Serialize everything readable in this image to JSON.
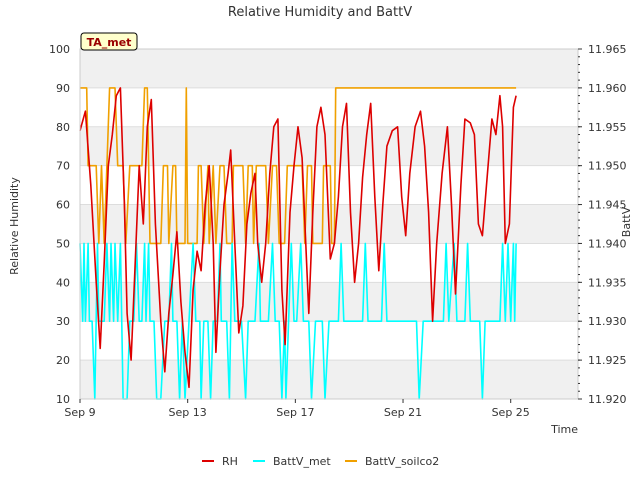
{
  "chart_data": {
    "type": "line",
    "title": "Relative Humidity and BattV",
    "xlabel": "Time",
    "ylabel": "Relative Humidity",
    "y2label": "BattV",
    "annotation": "TA_met",
    "x_tick_labels": [
      "Sep 9",
      "Sep 13",
      "Sep 17",
      "Sep 21",
      "Sep 25"
    ],
    "x_range_days": [
      0,
      18.5
    ],
    "ylim": [
      10,
      100
    ],
    "y_ticks": [
      10,
      20,
      30,
      40,
      50,
      60,
      70,
      80,
      90,
      100
    ],
    "y2lim": [
      11.92,
      11.965
    ],
    "y2_ticks": [
      "11.920",
      "11.925",
      "11.930",
      "11.935",
      "11.940",
      "11.945",
      "11.950",
      "11.955",
      "11.960",
      "11.965"
    ],
    "grid": "horizontal bands",
    "legend_position": "bottom",
    "colors": {
      "RH": "#dd0000",
      "BattV_met": "#00ffff",
      "BattV_soilco2": "#f0a000"
    },
    "series": [
      {
        "name": "RH",
        "axis": "left",
        "points": [
          [
            0.0,
            79
          ],
          [
            0.2,
            84
          ],
          [
            0.4,
            65
          ],
          [
            0.6,
            40
          ],
          [
            0.75,
            23
          ],
          [
            0.9,
            45
          ],
          [
            1.05,
            70
          ],
          [
            1.2,
            78
          ],
          [
            1.35,
            88
          ],
          [
            1.5,
            90
          ],
          [
            1.65,
            60
          ],
          [
            1.75,
            32
          ],
          [
            1.9,
            20
          ],
          [
            2.05,
            45
          ],
          [
            2.2,
            70
          ],
          [
            2.35,
            55
          ],
          [
            2.5,
            80
          ],
          [
            2.65,
            87
          ],
          [
            2.8,
            55
          ],
          [
            3.0,
            30
          ],
          [
            3.15,
            17
          ],
          [
            3.3,
            32
          ],
          [
            3.45,
            42
          ],
          [
            3.6,
            53
          ],
          [
            3.75,
            35
          ],
          [
            3.9,
            22
          ],
          [
            4.05,
            13
          ],
          [
            4.2,
            38
          ],
          [
            4.35,
            48
          ],
          [
            4.5,
            43
          ],
          [
            4.65,
            60
          ],
          [
            4.8,
            70
          ],
          [
            4.95,
            50
          ],
          [
            5.05,
            22
          ],
          [
            5.2,
            43
          ],
          [
            5.35,
            60
          ],
          [
            5.5,
            68
          ],
          [
            5.6,
            74
          ],
          [
            5.75,
            50
          ],
          [
            5.9,
            27
          ],
          [
            6.05,
            34
          ],
          [
            6.2,
            55
          ],
          [
            6.35,
            63
          ],
          [
            6.5,
            68
          ],
          [
            6.6,
            50
          ],
          [
            6.75,
            40
          ],
          [
            6.9,
            50
          ],
          [
            7.05,
            68
          ],
          [
            7.2,
            80
          ],
          [
            7.35,
            82
          ],
          [
            7.5,
            38
          ],
          [
            7.62,
            24
          ],
          [
            7.8,
            58
          ],
          [
            7.95,
            70
          ],
          [
            8.1,
            80
          ],
          [
            8.25,
            72
          ],
          [
            8.4,
            48
          ],
          [
            8.5,
            32
          ],
          [
            8.65,
            58
          ],
          [
            8.8,
            80
          ],
          [
            8.95,
            85
          ],
          [
            9.1,
            78
          ],
          [
            9.3,
            46
          ],
          [
            9.45,
            50
          ],
          [
            9.6,
            62
          ],
          [
            9.75,
            80
          ],
          [
            9.9,
            86
          ],
          [
            10.05,
            58
          ],
          [
            10.2,
            40
          ],
          [
            10.35,
            50
          ],
          [
            10.5,
            67
          ],
          [
            10.65,
            78
          ],
          [
            10.8,
            86
          ],
          [
            10.95,
            62
          ],
          [
            11.1,
            43
          ],
          [
            11.25,
            60
          ],
          [
            11.4,
            75
          ],
          [
            11.6,
            79
          ],
          [
            11.8,
            80
          ],
          [
            11.95,
            62
          ],
          [
            12.1,
            52
          ],
          [
            12.25,
            68
          ],
          [
            12.45,
            80
          ],
          [
            12.65,
            84
          ],
          [
            12.8,
            75
          ],
          [
            12.95,
            58
          ],
          [
            13.1,
            30
          ],
          [
            13.25,
            50
          ],
          [
            13.45,
            68
          ],
          [
            13.65,
            80
          ],
          [
            13.8,
            60
          ],
          [
            13.95,
            37
          ],
          [
            14.15,
            65
          ],
          [
            14.3,
            82
          ],
          [
            14.5,
            81
          ],
          [
            14.65,
            78
          ],
          [
            14.8,
            55
          ],
          [
            14.95,
            52
          ],
          [
            15.1,
            65
          ],
          [
            15.3,
            82
          ],
          [
            15.45,
            78
          ],
          [
            15.6,
            88
          ],
          [
            15.7,
            80
          ],
          [
            15.8,
            50
          ],
          [
            15.95,
            55
          ],
          [
            16.1,
            85
          ],
          [
            16.2,
            88
          ]
        ]
      },
      {
        "name": "BattV_met",
        "axis": "right",
        "points": [
          [
            0.0,
            11.94
          ],
          [
            0.1,
            11.93
          ],
          [
            0.15,
            11.94
          ],
          [
            0.2,
            11.93
          ],
          [
            0.3,
            11.94
          ],
          [
            0.35,
            11.93
          ],
          [
            0.45,
            11.93
          ],
          [
            0.55,
            11.92
          ],
          [
            0.65,
            11.94
          ],
          [
            0.7,
            11.93
          ],
          [
            0.9,
            11.93
          ],
          [
            1.0,
            11.94
          ],
          [
            1.1,
            11.93
          ],
          [
            1.15,
            11.94
          ],
          [
            1.25,
            11.93
          ],
          [
            1.3,
            11.94
          ],
          [
            1.4,
            11.93
          ],
          [
            1.5,
            11.94
          ],
          [
            1.6,
            11.92
          ],
          [
            1.75,
            11.92
          ],
          [
            1.85,
            11.93
          ],
          [
            2.0,
            11.93
          ],
          [
            2.1,
            11.94
          ],
          [
            2.2,
            11.93
          ],
          [
            2.3,
            11.93
          ],
          [
            2.4,
            11.94
          ],
          [
            2.45,
            11.93
          ],
          [
            2.55,
            11.94
          ],
          [
            2.6,
            11.93
          ],
          [
            2.75,
            11.93
          ],
          [
            2.85,
            11.92
          ],
          [
            3.0,
            11.92
          ],
          [
            3.15,
            11.93
          ],
          [
            3.3,
            11.93
          ],
          [
            3.4,
            11.94
          ],
          [
            3.45,
            11.93
          ],
          [
            3.6,
            11.93
          ],
          [
            3.7,
            11.92
          ],
          [
            3.8,
            11.93
          ],
          [
            3.9,
            11.92
          ],
          [
            4.05,
            11.93
          ],
          [
            4.2,
            11.94
          ],
          [
            4.3,
            11.93
          ],
          [
            4.45,
            11.93
          ],
          [
            4.5,
            11.92
          ],
          [
            4.6,
            11.93
          ],
          [
            4.75,
            11.93
          ],
          [
            4.85,
            11.92
          ],
          [
            4.95,
            11.93
          ],
          [
            5.1,
            11.93
          ],
          [
            5.2,
            11.94
          ],
          [
            5.25,
            11.93
          ],
          [
            5.45,
            11.93
          ],
          [
            5.55,
            11.92
          ],
          [
            5.65,
            11.94
          ],
          [
            5.75,
            11.93
          ],
          [
            6.0,
            11.93
          ],
          [
            6.15,
            11.92
          ],
          [
            6.25,
            11.93
          ],
          [
            6.5,
            11.93
          ],
          [
            6.65,
            11.94
          ],
          [
            6.7,
            11.93
          ],
          [
            7.0,
            11.93
          ],
          [
            7.15,
            11.94
          ],
          [
            7.25,
            11.93
          ],
          [
            7.4,
            11.93
          ],
          [
            7.5,
            11.92
          ],
          [
            7.6,
            11.93
          ],
          [
            7.65,
            11.92
          ],
          [
            7.75,
            11.93
          ],
          [
            7.85,
            11.94
          ],
          [
            7.95,
            11.93
          ],
          [
            8.05,
            11.93
          ],
          [
            8.2,
            11.94
          ],
          [
            8.3,
            11.93
          ],
          [
            8.5,
            11.93
          ],
          [
            8.6,
            11.92
          ],
          [
            8.75,
            11.93
          ],
          [
            9.0,
            11.93
          ],
          [
            9.1,
            11.92
          ],
          [
            9.25,
            11.93
          ],
          [
            9.6,
            11.93
          ],
          [
            9.7,
            11.94
          ],
          [
            9.8,
            11.93
          ],
          [
            10.5,
            11.93
          ],
          [
            10.6,
            11.94
          ],
          [
            10.7,
            11.93
          ],
          [
            11.2,
            11.93
          ],
          [
            11.3,
            11.94
          ],
          [
            11.4,
            11.93
          ],
          [
            12.5,
            11.93
          ],
          [
            12.6,
            11.92
          ],
          [
            12.75,
            11.93
          ],
          [
            13.5,
            11.93
          ],
          [
            13.6,
            11.94
          ],
          [
            13.7,
            11.93
          ],
          [
            13.9,
            11.94
          ],
          [
            14.0,
            11.93
          ],
          [
            14.3,
            11.93
          ],
          [
            14.4,
            11.94
          ],
          [
            14.5,
            11.93
          ],
          [
            14.85,
            11.93
          ],
          [
            14.95,
            11.92
          ],
          [
            15.05,
            11.93
          ],
          [
            15.6,
            11.93
          ],
          [
            15.7,
            11.94
          ],
          [
            15.8,
            11.93
          ],
          [
            15.9,
            11.94
          ],
          [
            16.0,
            11.93
          ],
          [
            16.1,
            11.94
          ],
          [
            16.15,
            11.93
          ],
          [
            16.2,
            11.94
          ]
        ]
      },
      {
        "name": "BattV_soilco2",
        "axis": "right",
        "points": [
          [
            0.0,
            11.96
          ],
          [
            0.25,
            11.96
          ],
          [
            0.3,
            11.95
          ],
          [
            0.6,
            11.95
          ],
          [
            0.7,
            11.94
          ],
          [
            0.8,
            11.95
          ],
          [
            0.9,
            11.94
          ],
          [
            1.0,
            11.95
          ],
          [
            1.1,
            11.96
          ],
          [
            1.3,
            11.96
          ],
          [
            1.4,
            11.95
          ],
          [
            1.6,
            11.95
          ],
          [
            1.7,
            11.94
          ],
          [
            1.85,
            11.95
          ],
          [
            2.3,
            11.95
          ],
          [
            2.4,
            11.96
          ],
          [
            2.5,
            11.96
          ],
          [
            2.6,
            11.94
          ],
          [
            3.0,
            11.94
          ],
          [
            3.1,
            11.95
          ],
          [
            3.25,
            11.95
          ],
          [
            3.3,
            11.94
          ],
          [
            3.45,
            11.95
          ],
          [
            3.55,
            11.95
          ],
          [
            3.6,
            11.94
          ],
          [
            3.9,
            11.94
          ],
          [
            3.95,
            11.96
          ],
          [
            4.0,
            11.94
          ],
          [
            4.35,
            11.94
          ],
          [
            4.4,
            11.95
          ],
          [
            4.5,
            11.95
          ],
          [
            4.6,
            11.94
          ],
          [
            4.75,
            11.95
          ],
          [
            4.8,
            11.94
          ],
          [
            4.95,
            11.95
          ],
          [
            5.05,
            11.94
          ],
          [
            5.2,
            11.95
          ],
          [
            5.35,
            11.95
          ],
          [
            5.45,
            11.94
          ],
          [
            5.65,
            11.94
          ],
          [
            5.7,
            11.95
          ],
          [
            6.05,
            11.95
          ],
          [
            6.15,
            11.94
          ],
          [
            6.25,
            11.95
          ],
          [
            6.4,
            11.95
          ],
          [
            6.45,
            11.94
          ],
          [
            6.55,
            11.95
          ],
          [
            6.9,
            11.95
          ],
          [
            7.0,
            11.94
          ],
          [
            7.15,
            11.95
          ],
          [
            7.3,
            11.95
          ],
          [
            7.4,
            11.94
          ],
          [
            7.6,
            11.94
          ],
          [
            7.7,
            11.95
          ],
          [
            8.25,
            11.95
          ],
          [
            8.35,
            11.94
          ],
          [
            8.45,
            11.95
          ],
          [
            8.6,
            11.95
          ],
          [
            8.65,
            11.94
          ],
          [
            9.0,
            11.94
          ],
          [
            9.05,
            11.95
          ],
          [
            9.3,
            11.95
          ],
          [
            9.35,
            11.94
          ],
          [
            9.45,
            11.94
          ],
          [
            9.5,
            11.96
          ],
          [
            16.2,
            11.96
          ]
        ]
      }
    ]
  },
  "legend": {
    "items": [
      "RH",
      "BattV_met",
      "BattV_soilco2"
    ]
  }
}
